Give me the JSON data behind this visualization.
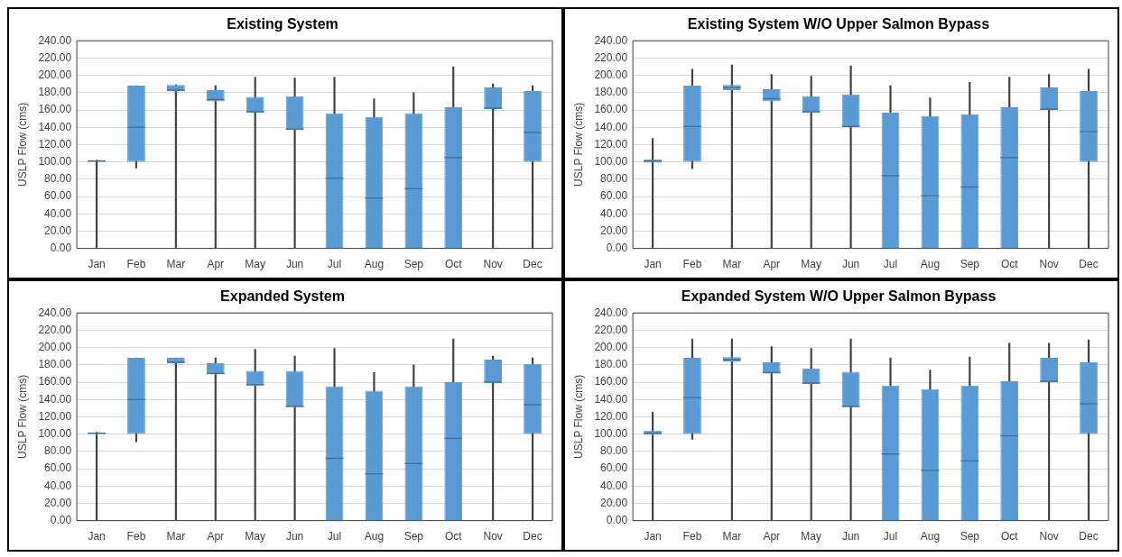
{
  "chart_data": [
    {
      "type": "box",
      "title": "Existing System",
      "ylabel": "USLP Flow (cms)",
      "categories": [
        "Jan",
        "Feb",
        "Mar",
        "Apr",
        "May",
        "Jun",
        "Jul",
        "Aug",
        "Sep",
        "Oct",
        "Nov",
        "Dec"
      ],
      "color": "#5b9bd5",
      "ylim": [
        0,
        240
      ],
      "yticks": [
        {
          "value": 0,
          "label": "0.00"
        },
        {
          "value": 20,
          "label": "20.00"
        },
        {
          "value": 40,
          "label": "40.00"
        },
        {
          "value": 60,
          "label": "60.00"
        },
        {
          "value": 80,
          "label": "80.00"
        },
        {
          "value": 100,
          "label": "100.00"
        },
        {
          "value": 120,
          "label": "120.00"
        },
        {
          "value": 140,
          "label": "140.00"
        },
        {
          "value": 160,
          "label": "160.00"
        },
        {
          "value": 180,
          "label": "180.00"
        },
        {
          "value": 200,
          "label": "200.00"
        },
        {
          "value": 220,
          "label": "220.00"
        },
        {
          "value": 240,
          "label": "240.00"
        }
      ],
      "grid": "y",
      "legend": false,
      "boxes": [
        {
          "low": 0,
          "q1": 100,
          "median": 101,
          "q3": 102,
          "high": 102
        },
        {
          "low": 93,
          "q1": 100,
          "median": 140,
          "q3": 188,
          "high": 188
        },
        {
          "low": 0,
          "q1": 182,
          "median": 183,
          "q3": 189,
          "high": 189
        },
        {
          "low": 0,
          "q1": 170,
          "median": 172,
          "q3": 183,
          "high": 188
        },
        {
          "low": 0,
          "q1": 157,
          "median": 158,
          "q3": 175,
          "high": 198
        },
        {
          "low": 0,
          "q1": 137,
          "median": 138,
          "q3": 176,
          "high": 197
        },
        {
          "low": 0,
          "q1": 0,
          "median": 81,
          "q3": 156,
          "high": 198
        },
        {
          "low": 0,
          "q1": 0,
          "median": 58,
          "q3": 152,
          "high": 173
        },
        {
          "low": 0,
          "q1": 0,
          "median": 69,
          "q3": 156,
          "high": 180
        },
        {
          "low": 0,
          "q1": 0,
          "median": 105,
          "q3": 163,
          "high": 210
        },
        {
          "low": 0,
          "q1": 161,
          "median": 162,
          "q3": 186,
          "high": 190
        },
        {
          "low": 0,
          "q1": 100,
          "median": 134,
          "q3": 182,
          "high": 188
        }
      ]
    },
    {
      "type": "box",
      "title": "Existing System W/O Upper Salmon Bypass",
      "ylabel": "USLP Flow (cms)",
      "categories": [
        "Jan",
        "Feb",
        "Mar",
        "Apr",
        "May",
        "Jun",
        "Jul",
        "Aug",
        "Sep",
        "Oct",
        "Nov",
        "Dec"
      ],
      "color": "#5b9bd5",
      "ylim": [
        0,
        240
      ],
      "yticks": [
        {
          "value": 0,
          "label": "0.00"
        },
        {
          "value": 20,
          "label": "20.00"
        },
        {
          "value": 40,
          "label": "40.00"
        },
        {
          "value": 60,
          "label": "60.00"
        },
        {
          "value": 80,
          "label": "80.00"
        },
        {
          "value": 100,
          "label": "100.00"
        },
        {
          "value": 120,
          "label": "120.00"
        },
        {
          "value": 140,
          "label": "140.00"
        },
        {
          "value": 160,
          "label": "160.00"
        },
        {
          "value": 180,
          "label": "180.00"
        },
        {
          "value": 200,
          "label": "200.00"
        },
        {
          "value": 220,
          "label": "220.00"
        },
        {
          "value": 240,
          "label": "240.00"
        }
      ],
      "grid": "y",
      "legend": false,
      "boxes": [
        {
          "low": 0,
          "q1": 99,
          "median": 101,
          "q3": 103,
          "high": 127
        },
        {
          "low": 92,
          "q1": 100,
          "median": 141,
          "q3": 188,
          "high": 207
        },
        {
          "low": 0,
          "q1": 183,
          "median": 186,
          "q3": 189,
          "high": 212
        },
        {
          "low": 0,
          "q1": 170,
          "median": 173,
          "q3": 184,
          "high": 201
        },
        {
          "low": 0,
          "q1": 157,
          "median": 158,
          "q3": 176,
          "high": 199
        },
        {
          "low": 0,
          "q1": 140,
          "median": 141,
          "q3": 178,
          "high": 211
        },
        {
          "low": 0,
          "q1": 0,
          "median": 84,
          "q3": 157,
          "high": 188
        },
        {
          "low": 0,
          "q1": 0,
          "median": 61,
          "q3": 153,
          "high": 174
        },
        {
          "low": 0,
          "q1": 0,
          "median": 71,
          "q3": 155,
          "high": 192
        },
        {
          "low": 0,
          "q1": 0,
          "median": 105,
          "q3": 163,
          "high": 198
        },
        {
          "low": 0,
          "q1": 160,
          "median": 161,
          "q3": 186,
          "high": 201
        },
        {
          "low": 0,
          "q1": 100,
          "median": 135,
          "q3": 182,
          "high": 207
        }
      ]
    },
    {
      "type": "box",
      "title": "Expanded System",
      "ylabel": "USLP Flow (cms)",
      "categories": [
        "Jan",
        "Feb",
        "Mar",
        "Apr",
        "May",
        "Jun",
        "Jul",
        "Aug",
        "Sep",
        "Oct",
        "Nov",
        "Dec"
      ],
      "color": "#5b9bd5",
      "ylim": [
        0,
        240
      ],
      "yticks": [
        {
          "value": 0,
          "label": "0.00"
        },
        {
          "value": 20,
          "label": "20.00"
        },
        {
          "value": 40,
          "label": "40.00"
        },
        {
          "value": 60,
          "label": "60.00"
        },
        {
          "value": 80,
          "label": "80.00"
        },
        {
          "value": 100,
          "label": "100.00"
        },
        {
          "value": 120,
          "label": "120.00"
        },
        {
          "value": 140,
          "label": "140.00"
        },
        {
          "value": 160,
          "label": "160.00"
        },
        {
          "value": 180,
          "label": "180.00"
        },
        {
          "value": 200,
          "label": "200.00"
        },
        {
          "value": 220,
          "label": "220.00"
        },
        {
          "value": 240,
          "label": "240.00"
        }
      ],
      "grid": "y",
      "legend": false,
      "boxes": [
        {
          "low": 0,
          "q1": 100,
          "median": 101,
          "q3": 102,
          "high": 102
        },
        {
          "low": 91,
          "q1": 100,
          "median": 140,
          "q3": 188,
          "high": 188
        },
        {
          "low": 0,
          "q1": 182,
          "median": 183,
          "q3": 188,
          "high": 188
        },
        {
          "low": 0,
          "q1": 169,
          "median": 170,
          "q3": 182,
          "high": 188
        },
        {
          "low": 0,
          "q1": 156,
          "median": 157,
          "q3": 173,
          "high": 198
        },
        {
          "low": 0,
          "q1": 131,
          "median": 132,
          "q3": 173,
          "high": 190
        },
        {
          "low": 0,
          "q1": 0,
          "median": 72,
          "q3": 155,
          "high": 199
        },
        {
          "low": 0,
          "q1": 0,
          "median": 54,
          "q3": 150,
          "high": 171
        },
        {
          "low": 0,
          "q1": 0,
          "median": 66,
          "q3": 155,
          "high": 180
        },
        {
          "low": 0,
          "q1": 0,
          "median": 95,
          "q3": 160,
          "high": 210
        },
        {
          "low": 0,
          "q1": 159,
          "median": 160,
          "q3": 186,
          "high": 190
        },
        {
          "low": 0,
          "q1": 100,
          "median": 134,
          "q3": 181,
          "high": 188
        }
      ]
    },
    {
      "type": "box",
      "title": "Expanded System W/O Upper Salmon Bypass",
      "ylabel": "USLP Flow (cms)",
      "categories": [
        "Jan",
        "Feb",
        "Mar",
        "Apr",
        "May",
        "Jun",
        "Jul",
        "Aug",
        "Sep",
        "Oct",
        "Nov",
        "Dec"
      ],
      "color": "#5b9bd5",
      "ylim": [
        0,
        240
      ],
      "yticks": [
        {
          "value": 0,
          "label": "0.00"
        },
        {
          "value": 20,
          "label": "20.00"
        },
        {
          "value": 40,
          "label": "40.00"
        },
        {
          "value": 60,
          "label": "60.00"
        },
        {
          "value": 80,
          "label": "80.00"
        },
        {
          "value": 100,
          "label": "100.00"
        },
        {
          "value": 120,
          "label": "120.00"
        },
        {
          "value": 140,
          "label": "140.00"
        },
        {
          "value": 160,
          "label": "160.00"
        },
        {
          "value": 180,
          "label": "180.00"
        },
        {
          "value": 200,
          "label": "200.00"
        },
        {
          "value": 220,
          "label": "220.00"
        },
        {
          "value": 240,
          "label": "240.00"
        }
      ],
      "grid": "y",
      "legend": false,
      "boxes": [
        {
          "low": 0,
          "q1": 99,
          "median": 101,
          "q3": 104,
          "high": 125
        },
        {
          "low": 94,
          "q1": 100,
          "median": 142,
          "q3": 188,
          "high": 210
        },
        {
          "low": 0,
          "q1": 184,
          "median": 186,
          "q3": 189,
          "high": 210
        },
        {
          "low": 0,
          "q1": 170,
          "median": 171,
          "q3": 183,
          "high": 201
        },
        {
          "low": 0,
          "q1": 158,
          "median": 159,
          "q3": 176,
          "high": 199
        },
        {
          "low": 0,
          "q1": 131,
          "median": 132,
          "q3": 172,
          "high": 210
        },
        {
          "low": 0,
          "q1": 0,
          "median": 77,
          "q3": 156,
          "high": 188
        },
        {
          "low": 0,
          "q1": 0,
          "median": 58,
          "q3": 152,
          "high": 174
        },
        {
          "low": 0,
          "q1": 0,
          "median": 69,
          "q3": 156,
          "high": 189
        },
        {
          "low": 0,
          "q1": 0,
          "median": 98,
          "q3": 161,
          "high": 205
        },
        {
          "low": 0,
          "q1": 160,
          "median": 161,
          "q3": 188,
          "high": 205
        },
        {
          "low": 0,
          "q1": 100,
          "median": 135,
          "q3": 183,
          "high": 209
        }
      ]
    }
  ]
}
